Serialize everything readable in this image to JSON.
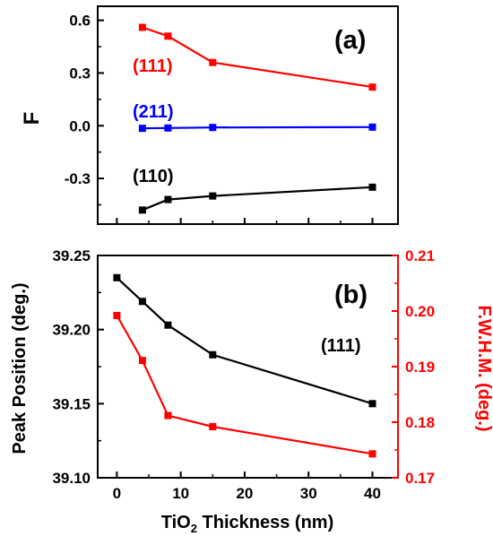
{
  "chart_data": [
    {
      "panel": "(a)",
      "type": "line",
      "ylabel": "F",
      "xlim": [
        -3,
        44
      ],
      "ylim": [
        -0.56,
        0.68
      ],
      "yticks": [
        "0.6",
        "0.3",
        "0.0",
        "-0.3"
      ],
      "series": [
        {
          "name": "(111)",
          "color": "#ff0000",
          "x": [
            4,
            8,
            15,
            40
          ],
          "y": [
            0.56,
            0.51,
            0.36,
            0.22
          ]
        },
        {
          "name": "(211)",
          "color": "#0000ff",
          "x": [
            4,
            8,
            15,
            40
          ],
          "y": [
            -0.015,
            -0.013,
            -0.01,
            -0.008
          ]
        },
        {
          "name": "(110)",
          "color": "#000000",
          "x": [
            4,
            8,
            15,
            40
          ],
          "y": [
            -0.48,
            -0.42,
            -0.4,
            -0.35
          ]
        }
      ]
    },
    {
      "panel": "(b)",
      "type": "line",
      "xlabel_main": "TiO",
      "xlabel_sub": "2",
      "xlabel_rest": " Thickness (nm)",
      "xlim": [
        -3,
        44
      ],
      "xticks": [
        "0",
        "10",
        "20",
        "30",
        "40"
      ],
      "ylabel_left": "Peak Position (deg.)",
      "ylim_left": [
        39.1,
        39.25
      ],
      "yticks_left": [
        "39.25",
        "39.20",
        "39.15",
        "39.10"
      ],
      "ylabel_right": "F.W.H.M. (deg.)",
      "ylim_right": [
        0.17,
        0.21
      ],
      "yticks_right": [
        "0.21",
        "0.20",
        "0.19",
        "0.18",
        "0.17"
      ],
      "annotation": "(111)",
      "series": [
        {
          "axis": "left",
          "color": "#000000",
          "x": [
            0,
            4,
            8,
            15,
            40
          ],
          "y": [
            39.235,
            39.219,
            39.203,
            39.183,
            39.15
          ]
        },
        {
          "axis": "right",
          "color": "#ff0000",
          "x": [
            0,
            4,
            8,
            15,
            40
          ],
          "y": [
            0.1992,
            0.1911,
            0.1812,
            0.1792,
            0.1743
          ]
        }
      ]
    }
  ]
}
